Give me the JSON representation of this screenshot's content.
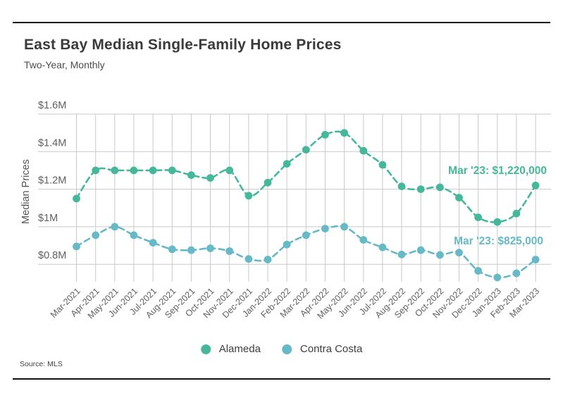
{
  "page": {
    "source": "Source: MLS"
  },
  "colors": {
    "alameda": "#45b89b",
    "contra_costa": "#66b9c6",
    "grid": "#c9c9c9",
    "tick_text": "#5f5f5f",
    "title_text": "#3a3a3a"
  },
  "chart_data": {
    "type": "line",
    "title": "East Bay Median Single-Family Home Prices",
    "subtitle": "Two-Year, Monthly",
    "ylabel": "Median Prices",
    "xlabel": "",
    "grid": true,
    "line_style": "dashed",
    "legend_position": "bottom",
    "ylim": [
      700000,
      1600000
    ],
    "yticks": [
      {
        "value": 1600000,
        "label": "$1.6M"
      },
      {
        "value": 1400000,
        "label": "$1.4M"
      },
      {
        "value": 1200000,
        "label": "$1.2M"
      },
      {
        "value": 1000000,
        "label": "$1M"
      },
      {
        "value": 800000,
        "label": "$0.8M"
      }
    ],
    "categories": [
      "Mar-2021",
      "Apr-2021",
      "May-2021",
      "Jun-2021",
      "Jul-2021",
      "Aug-2021",
      "Sep-2021",
      "Oct-2021",
      "Nov-2021",
      "Dec-2021",
      "Jan-2022",
      "Feb-2022",
      "Mar-2022",
      "Apr-2022",
      "May-2022",
      "Jun-2022",
      "Jul-2022",
      "Aug-2022",
      "Sep-2022",
      "Oct-2022",
      "Nov-2022",
      "Dec-2022",
      "Jan-2023",
      "Feb-2023",
      "Mar-2023"
    ],
    "series": [
      {
        "name": "Alameda",
        "color": "#45b89b",
        "values": [
          1150000,
          1300000,
          1300000,
          1300000,
          1300000,
          1300000,
          1275000,
          1260000,
          1300000,
          1165000,
          1235000,
          1335000,
          1410000,
          1490000,
          1500000,
          1405000,
          1330000,
          1215000,
          1200000,
          1210000,
          1155000,
          1050000,
          1025000,
          1070000,
          1220000
        ]
      },
      {
        "name": "Contra Costa",
        "color": "#66b9c6",
        "values": [
          895000,
          955000,
          1000000,
          955000,
          915000,
          880000,
          875000,
          885000,
          870000,
          828000,
          825000,
          905000,
          955000,
          990000,
          1000000,
          930000,
          890000,
          852000,
          875000,
          850000,
          862000,
          765000,
          730000,
          752000,
          825000
        ]
      }
    ],
    "annotations": [
      {
        "series": "Alameda",
        "text": "Mar '23: $1,220,000"
      },
      {
        "series": "Contra Costa",
        "text": "Mar '23: $825,000"
      }
    ]
  }
}
